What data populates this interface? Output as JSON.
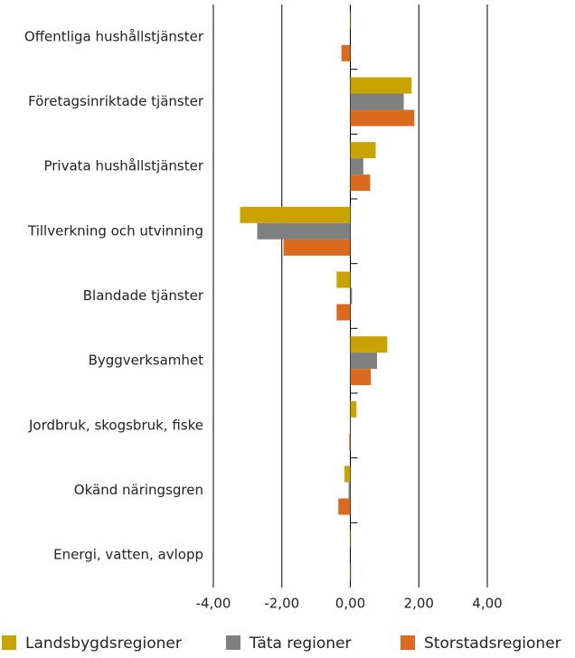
{
  "chart_data": {
    "type": "barh",
    "categories": [
      "Offentliga hushållstjänster",
      "Företagsinriktade tjänster",
      "Privata hushållstjänster",
      "Tillverkning och utvinning",
      "Blandade tjänster",
      "Byggverksamhet",
      "Jordbruk, skogsbruk, fiske",
      "Okänd näringsgren",
      "Energi, vatten, avlopp"
    ],
    "series": [
      {
        "name": "Landsbygdsregioner",
        "color": "#c9a400",
        "values": [
          0.02,
          1.79,
          0.74,
          -3.22,
          -0.4,
          1.08,
          0.18,
          -0.17,
          0.02
        ]
      },
      {
        "name": "Täta regioner",
        "color": "#808080",
        "values": [
          0,
          1.56,
          0.38,
          -2.72,
          0.05,
          0.78,
          0.01,
          -0.05,
          0
        ]
      },
      {
        "name": "Storstadsregioner",
        "color": "#d96a1e",
        "values": [
          -0.26,
          1.87,
          0.58,
          -1.95,
          -0.4,
          0.6,
          -0.03,
          -0.35,
          0.02
        ]
      }
    ],
    "xlim": [
      -4,
      4
    ],
    "xticks": [
      {
        "value": -4,
        "label": "-4,00"
      },
      {
        "value": -2,
        "label": "-2,00"
      },
      {
        "value": 0,
        "label": "0,00"
      },
      {
        "value": 2,
        "label": "2,00"
      },
      {
        "value": 4,
        "label": "4,00"
      }
    ],
    "grid": true,
    "legend": "bottom"
  }
}
